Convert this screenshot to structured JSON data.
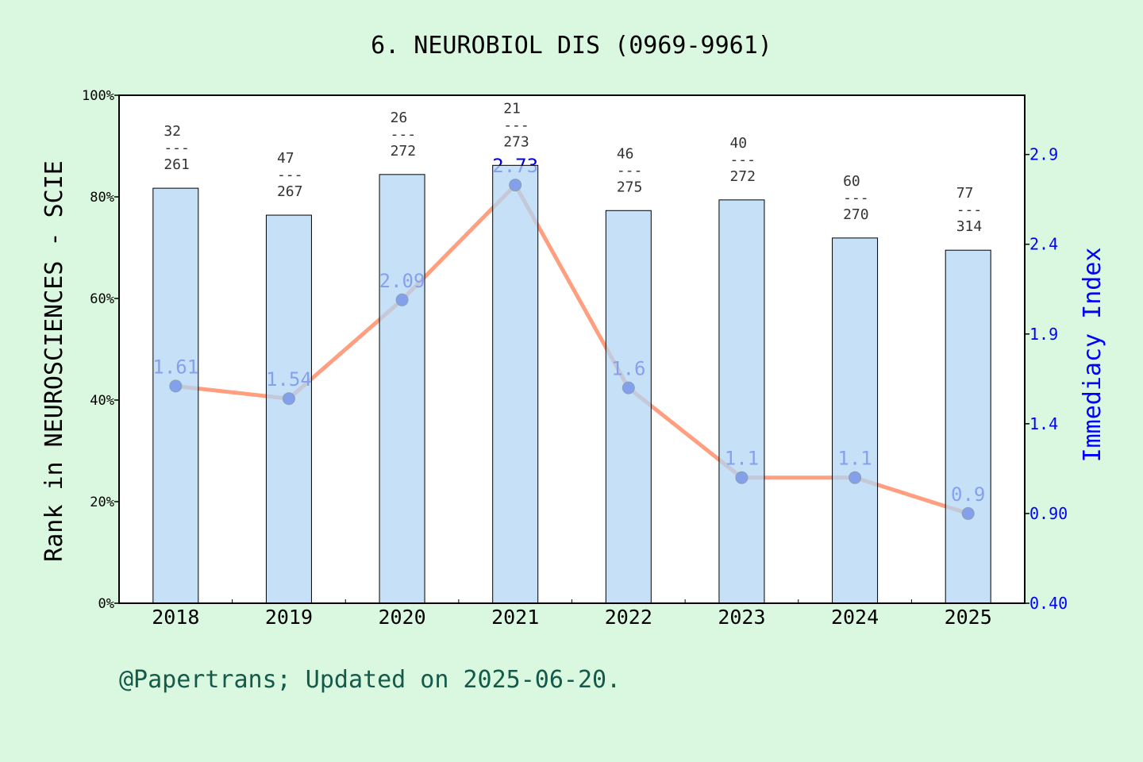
{
  "title": "6. NEUROBIOL DIS (0969-9961)",
  "footer": "@Papertrans; Updated on 2025-06-20.",
  "chart_data": {
    "type": "bar+line",
    "title": "6. NEUROBIOL DIS (0969-9961)",
    "categories": [
      "2018",
      "2019",
      "2020",
      "2021",
      "2022",
      "2023",
      "2024",
      "2025"
    ],
    "left_axis": {
      "label": "Rank in NEUROSCIENCES - SCIE",
      "ylim": [
        0,
        100
      ],
      "ticks": [
        "0%",
        "20%",
        "40%",
        "60%",
        "80%",
        "100%"
      ]
    },
    "right_axis": {
      "label": "Immediacy Index",
      "ylim": [
        0.4,
        3.23
      ],
      "ticks": [
        "0.40",
        "0.90",
        "1.4",
        "1.9",
        "2.4",
        "2.9"
      ]
    },
    "bars": {
      "values": [
        81.7,
        76.4,
        84.4,
        86.2,
        77.3,
        79.4,
        71.9,
        69.5
      ],
      "color": "#c5e0f7"
    },
    "rank_labels": [
      {
        "rank": "32",
        "sep": "---",
        "total": "261"
      },
      {
        "rank": "47",
        "sep": "---",
        "total": "267"
      },
      {
        "rank": "26",
        "sep": "---",
        "total": "272"
      },
      {
        "rank": "21",
        "sep": "---",
        "total": "273"
      },
      {
        "rank": "46",
        "sep": "---",
        "total": "275"
      },
      {
        "rank": "40",
        "sep": "---",
        "total": "272"
      },
      {
        "rank": "60",
        "sep": "---",
        "total": "270"
      },
      {
        "rank": "77",
        "sep": "---",
        "total": "314"
      }
    ],
    "line": {
      "values": [
        1.61,
        1.54,
        2.09,
        2.73,
        1.6,
        1.1,
        1.1,
        0.9
      ],
      "labels": [
        "1.61",
        "1.54",
        "2.09",
        "2.73",
        "1.6",
        "1.1",
        "1.1",
        "0.9"
      ],
      "color": "#ff9f7f",
      "marker_color": "#0000cc"
    },
    "grid": false
  }
}
